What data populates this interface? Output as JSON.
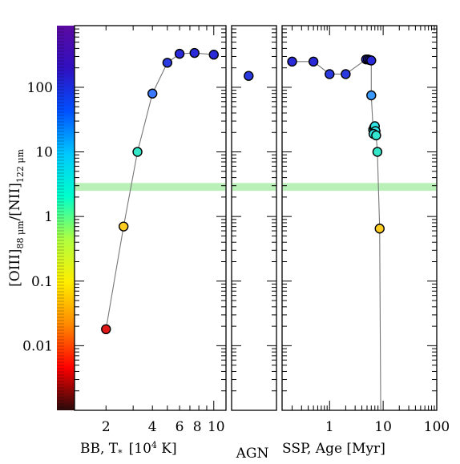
{
  "chart_data": {
    "type": "scatter",
    "ylabel_parts": [
      "[OIII]",
      "88 μm",
      "/[NII]",
      "122 μm"
    ],
    "y_log": true,
    "ylim": [
      0.001,
      900
    ],
    "y_ticks": [
      {
        "value": 0.01,
        "label": "0.01"
      },
      {
        "value": 0.1,
        "label": "0.1"
      },
      {
        "value": 1,
        "label": "1"
      },
      {
        "value": 10,
        "label": "10"
      },
      {
        "value": 100,
        "label": "100"
      }
    ],
    "colorbar": {
      "colors": [
        "#2a0a0a",
        "#ff0000",
        "#ff8800",
        "#ffee00",
        "#b0ff40",
        "#00ffcc",
        "#00c8ff",
        "#0050ff",
        "#3010c0",
        "#5a0aa0"
      ],
      "tick_count": 120
    },
    "band": {
      "range": [
        2.5,
        3.3
      ],
      "color": "#b8f0b8"
    },
    "panels": [
      {
        "id": "bb",
        "xlabel": "BB, T",
        "xlabel_sub": "*",
        "xlabel_suffix": "[10",
        "xlabel_sup": "4",
        "xlabel_end": " K]",
        "x_log": true,
        "xlim": [
          1.25,
          12
        ],
        "x_ticks": [
          {
            "value": 2,
            "label": "2"
          },
          {
            "value": 4,
            "label": "4"
          },
          {
            "value": 6,
            "label": "6"
          },
          {
            "value": 8,
            "label": "8"
          },
          {
            "value": 10,
            "label": "10"
          }
        ],
        "points": [
          {
            "x": 2.0,
            "y": 0.018,
            "color": "#e01818"
          },
          {
            "x": 2.6,
            "y": 0.7,
            "color": "#ffcc22"
          },
          {
            "x": 3.2,
            "y": 10,
            "color": "#33e6c8"
          },
          {
            "x": 4.0,
            "y": 80,
            "color": "#3a78ff"
          },
          {
            "x": 5.0,
            "y": 240,
            "color": "#2a3ae0"
          },
          {
            "x": 6.0,
            "y": 330,
            "color": "#2a2ad8"
          },
          {
            "x": 7.5,
            "y": 340,
            "color": "#2a2ad8"
          },
          {
            "x": 10.0,
            "y": 320,
            "color": "#2a2ad8"
          }
        ],
        "line": true
      },
      {
        "id": "agn",
        "xlabel": "AGN",
        "points": [
          {
            "x": 0.38,
            "y": 150,
            "color": "#2a3ae0"
          }
        ],
        "line": false
      },
      {
        "id": "ssp",
        "xlabel": "SSP, Age [Myr]",
        "x_log": true,
        "xlim": [
          0.13,
          100
        ],
        "x_ticks": [
          {
            "value": 1,
            "label": "1"
          },
          {
            "value": 10,
            "label": "10"
          },
          {
            "value": 100,
            "label": "100"
          }
        ],
        "points": [
          {
            "x": 0.2,
            "y": 250,
            "color": "#2a2ad8"
          },
          {
            "x": 0.5,
            "y": 250,
            "color": "#2a2ad8"
          },
          {
            "x": 1.0,
            "y": 160,
            "color": "#2a3ae0"
          },
          {
            "x": 2.0,
            "y": 160,
            "color": "#2a3ae0"
          },
          {
            "x": 4.8,
            "y": 270,
            "color": "#2a2ad8"
          },
          {
            "x": 5.2,
            "y": 270,
            "color": "#2a2ad8"
          },
          {
            "x": 5.6,
            "y": 265,
            "color": "#2a2ad8"
          },
          {
            "x": 6.0,
            "y": 260,
            "color": "#2a2ad8"
          },
          {
            "x": 6.0,
            "y": 75,
            "color": "#3a9aff"
          },
          {
            "x": 6.5,
            "y": 22,
            "color": "#33e6e6"
          },
          {
            "x": 6.8,
            "y": 24,
            "color": "#33e6e6"
          },
          {
            "x": 7.0,
            "y": 25,
            "color": "#33e6e6"
          },
          {
            "x": 7.2,
            "y": 21,
            "color": "#33e6e6"
          },
          {
            "x": 6.6,
            "y": 19,
            "color": "#33e6e6"
          },
          {
            "x": 7.4,
            "y": 18,
            "color": "#33e6d0"
          },
          {
            "x": 7.8,
            "y": 10,
            "color": "#33e6c8"
          },
          {
            "x": 8.6,
            "y": 0.65,
            "color": "#ffcc22"
          },
          {
            "x": 9.0,
            "y": 0.001,
            "color": null
          }
        ],
        "line": true
      }
    ]
  }
}
